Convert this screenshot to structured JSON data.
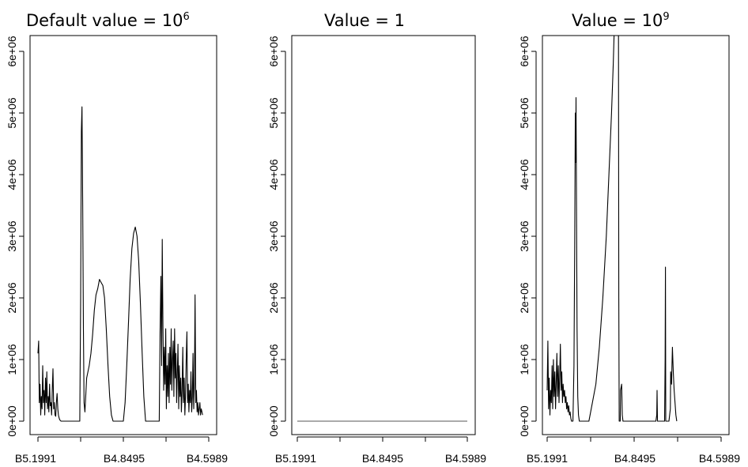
{
  "chart_data": [
    {
      "type": "line",
      "title": "Default value = 10",
      "title_superscript": "6",
      "xlabel": "",
      "ylabel": "",
      "ylim": [
        0,
        6300000
      ],
      "y_ticks": [
        {
          "value": 0,
          "label": "0e+00"
        },
        {
          "value": 1000000,
          "label": "1e+06"
        },
        {
          "value": 2000000,
          "label": "2e+06"
        },
        {
          "value": 3000000,
          "label": "3e+06"
        },
        {
          "value": 4000000,
          "label": "4e+06"
        },
        {
          "value": 5000000,
          "label": "5e+06"
        },
        {
          "value": 6000000,
          "label": "6e+06"
        }
      ],
      "xlim": [
        0,
        1
      ],
      "x_ticks": [
        {
          "value": 0,
          "label": "B5.1991"
        },
        {
          "value": 0.25,
          "label": ""
        },
        {
          "value": 0.5,
          "label": "B4.8495"
        },
        {
          "value": 0.75,
          "label": ""
        },
        {
          "value": 1,
          "label": "B4.5989"
        }
      ],
      "series_points": [
        [
          0.0,
          1100000
        ],
        [
          0.004,
          1300000
        ],
        [
          0.008,
          300000
        ],
        [
          0.012,
          600000
        ],
        [
          0.016,
          100000
        ],
        [
          0.02,
          400000
        ],
        [
          0.024,
          200000
        ],
        [
          0.028,
          900000
        ],
        [
          0.032,
          300000
        ],
        [
          0.036,
          500000
        ],
        [
          0.04,
          100000
        ],
        [
          0.044,
          700000
        ],
        [
          0.048,
          300000
        ],
        [
          0.052,
          800000
        ],
        [
          0.056,
          200000
        ],
        [
          0.06,
          400000
        ],
        [
          0.064,
          150000
        ],
        [
          0.068,
          600000
        ],
        [
          0.072,
          250000
        ],
        [
          0.076,
          300000
        ],
        [
          0.08,
          100000
        ],
        [
          0.084,
          500000
        ],
        [
          0.088,
          850000
        ],
        [
          0.092,
          200000
        ],
        [
          0.096,
          300000
        ],
        [
          0.1,
          100000
        ],
        [
          0.104,
          80000
        ],
        [
          0.108,
          300000
        ],
        [
          0.112,
          450000
        ],
        [
          0.116,
          200000
        ],
        [
          0.12,
          100000
        ],
        [
          0.124,
          50000
        ],
        [
          0.128,
          20000
        ],
        [
          0.135,
          0
        ],
        [
          0.245,
          0
        ],
        [
          0.25,
          2000000
        ],
        [
          0.254,
          4700000
        ],
        [
          0.258,
          5100000
        ],
        [
          0.262,
          3500000
        ],
        [
          0.266,
          1500000
        ],
        [
          0.27,
          300000
        ],
        [
          0.275,
          150000
        ],
        [
          0.285,
          700000
        ],
        [
          0.3,
          900000
        ],
        [
          0.31,
          1100000
        ],
        [
          0.32,
          1400000
        ],
        [
          0.33,
          1800000
        ],
        [
          0.34,
          2050000
        ],
        [
          0.35,
          2150000
        ],
        [
          0.36,
          2300000
        ],
        [
          0.37,
          2250000
        ],
        [
          0.38,
          2200000
        ],
        [
          0.39,
          2000000
        ],
        [
          0.4,
          1500000
        ],
        [
          0.41,
          900000
        ],
        [
          0.42,
          400000
        ],
        [
          0.43,
          100000
        ],
        [
          0.44,
          0
        ],
        [
          0.5,
          0
        ],
        [
          0.51,
          300000
        ],
        [
          0.52,
          900000
        ],
        [
          0.53,
          1600000
        ],
        [
          0.54,
          2300000
        ],
        [
          0.55,
          2800000
        ],
        [
          0.56,
          3050000
        ],
        [
          0.57,
          3150000
        ],
        [
          0.58,
          3000000
        ],
        [
          0.59,
          2600000
        ],
        [
          0.6,
          1900000
        ],
        [
          0.61,
          1100000
        ],
        [
          0.62,
          400000
        ],
        [
          0.63,
          0
        ],
        [
          0.71,
          0
        ],
        [
          0.715,
          1400000
        ],
        [
          0.72,
          2350000
        ],
        [
          0.724,
          900000
        ],
        [
          0.728,
          2950000
        ],
        [
          0.732,
          1500000
        ],
        [
          0.736,
          500000
        ],
        [
          0.74,
          1200000
        ],
        [
          0.744,
          600000
        ],
        [
          0.748,
          1500000
        ],
        [
          0.752,
          200000
        ],
        [
          0.756,
          900000
        ],
        [
          0.76,
          400000
        ],
        [
          0.764,
          1100000
        ],
        [
          0.768,
          300000
        ],
        [
          0.772,
          1200000
        ],
        [
          0.776,
          600000
        ],
        [
          0.78,
          1500000
        ],
        [
          0.784,
          500000
        ],
        [
          0.788,
          1000000
        ],
        [
          0.792,
          1300000
        ],
        [
          0.796,
          400000
        ],
        [
          0.8,
          1500000
        ],
        [
          0.804,
          700000
        ],
        [
          0.808,
          1100000
        ],
        [
          0.812,
          300000
        ],
        [
          0.816,
          800000
        ],
        [
          0.82,
          1250000
        ],
        [
          0.824,
          200000
        ],
        [
          0.828,
          900000
        ],
        [
          0.832,
          400000
        ],
        [
          0.836,
          700000
        ],
        [
          0.84,
          150000
        ],
        [
          0.844,
          500000
        ],
        [
          0.848,
          1200000
        ],
        [
          0.852,
          300000
        ],
        [
          0.856,
          700000
        ],
        [
          0.86,
          100000
        ],
        [
          0.864,
          400000
        ],
        [
          0.868,
          1000000
        ],
        [
          0.872,
          1450000
        ],
        [
          0.876,
          300000
        ],
        [
          0.88,
          600000
        ],
        [
          0.884,
          150000
        ],
        [
          0.888,
          500000
        ],
        [
          0.892,
          300000
        ],
        [
          0.896,
          800000
        ],
        [
          0.9,
          150000
        ],
        [
          0.904,
          400000
        ],
        [
          0.908,
          1100000
        ],
        [
          0.912,
          200000
        ],
        [
          0.916,
          600000
        ],
        [
          0.92,
          2050000
        ],
        [
          0.924,
          300000
        ],
        [
          0.928,
          500000
        ],
        [
          0.932,
          150000
        ],
        [
          0.936,
          300000
        ],
        [
          0.94,
          100000
        ],
        [
          0.944,
          200000
        ],
        [
          0.948,
          300000
        ],
        [
          0.952,
          100000
        ],
        [
          0.956,
          200000
        ],
        [
          0.96,
          150000
        ],
        [
          0.964,
          100000
        ]
      ]
    },
    {
      "type": "line",
      "title": "Value = 1",
      "title_superscript": "",
      "xlabel": "",
      "ylabel": "",
      "ylim": [
        0,
        6300000
      ],
      "y_ticks": [
        {
          "value": 0,
          "label": "0e+00"
        },
        {
          "value": 1000000,
          "label": "1e+06"
        },
        {
          "value": 2000000,
          "label": "2e+06"
        },
        {
          "value": 3000000,
          "label": "3e+06"
        },
        {
          "value": 4000000,
          "label": "4e+06"
        },
        {
          "value": 5000000,
          "label": "5e+06"
        },
        {
          "value": 6000000,
          "label": "6e+06"
        }
      ],
      "xlim": [
        0,
        1
      ],
      "x_ticks": [
        {
          "value": 0,
          "label": "B5.1991"
        },
        {
          "value": 0.25,
          "label": ""
        },
        {
          "value": 0.5,
          "label": "B4.8495"
        },
        {
          "value": 0.75,
          "label": ""
        },
        {
          "value": 1,
          "label": "B4.5989"
        }
      ],
      "series_points": [
        [
          0.0,
          0
        ],
        [
          1.0,
          0
        ]
      ]
    },
    {
      "type": "line",
      "title": "Value = 10",
      "title_superscript": "9",
      "xlabel": "",
      "ylabel": "",
      "ylim": [
        0,
        6300000
      ],
      "y_ticks": [
        {
          "value": 0,
          "label": "0e+00"
        },
        {
          "value": 1000000,
          "label": "1e+06"
        },
        {
          "value": 2000000,
          "label": "2e+06"
        },
        {
          "value": 3000000,
          "label": "3e+06"
        },
        {
          "value": 4000000,
          "label": "4e+06"
        },
        {
          "value": 5000000,
          "label": "5e+06"
        },
        {
          "value": 6000000,
          "label": "6e+06"
        }
      ],
      "xlim": [
        0,
        1
      ],
      "x_ticks": [
        {
          "value": 0,
          "label": "B5.1991"
        },
        {
          "value": 0.25,
          "label": ""
        },
        {
          "value": 0.5,
          "label": "B4.8495"
        },
        {
          "value": 0.75,
          "label": ""
        },
        {
          "value": 1,
          "label": "B4.5989"
        }
      ],
      "series_points": [
        [
          0.0,
          500000
        ],
        [
          0.004,
          1300000
        ],
        [
          0.008,
          200000
        ],
        [
          0.012,
          700000
        ],
        [
          0.016,
          100000
        ],
        [
          0.02,
          500000
        ],
        [
          0.024,
          300000
        ],
        [
          0.028,
          900000
        ],
        [
          0.032,
          200000
        ],
        [
          0.036,
          1000000
        ],
        [
          0.04,
          400000
        ],
        [
          0.044,
          800000
        ],
        [
          0.048,
          200000
        ],
        [
          0.052,
          600000
        ],
        [
          0.056,
          1100000
        ],
        [
          0.06,
          400000
        ],
        [
          0.064,
          900000
        ],
        [
          0.068,
          300000
        ],
        [
          0.072,
          700000
        ],
        [
          0.076,
          1250000
        ],
        [
          0.08,
          500000
        ],
        [
          0.084,
          800000
        ],
        [
          0.088,
          300000
        ],
        [
          0.092,
          600000
        ],
        [
          0.096,
          400000
        ],
        [
          0.1,
          500000
        ],
        [
          0.104,
          300000
        ],
        [
          0.108,
          400000
        ],
        [
          0.112,
          200000
        ],
        [
          0.116,
          300000
        ],
        [
          0.12,
          150000
        ],
        [
          0.124,
          250000
        ],
        [
          0.128,
          100000
        ],
        [
          0.132,
          150000
        ],
        [
          0.136,
          50000
        ],
        [
          0.14,
          0
        ],
        [
          0.148,
          0
        ],
        [
          0.154,
          900000
        ],
        [
          0.158,
          2800000
        ],
        [
          0.162,
          5000000
        ],
        [
          0.164,
          4200000
        ],
        [
          0.166,
          5250000
        ],
        [
          0.168,
          3800000
        ],
        [
          0.172,
          1500000
        ],
        [
          0.176,
          400000
        ],
        [
          0.18,
          100000
        ],
        [
          0.185,
          0
        ],
        [
          0.24,
          0
        ],
        [
          0.26,
          300000
        ],
        [
          0.28,
          600000
        ],
        [
          0.3,
          1200000
        ],
        [
          0.32,
          2000000
        ],
        [
          0.34,
          3000000
        ],
        [
          0.355,
          4000000
        ],
        [
          0.37,
          5000000
        ],
        [
          0.38,
          5800000
        ],
        [
          0.385,
          6300000
        ],
        [
          0.41,
          6300000
        ],
        [
          0.412,
          2000000
        ],
        [
          0.414,
          0
        ],
        [
          0.42,
          0
        ],
        [
          0.422,
          500000
        ],
        [
          0.428,
          600000
        ],
        [
          0.432,
          100000
        ],
        [
          0.436,
          0
        ],
        [
          0.6,
          0
        ],
        [
          0.61,
          0
        ],
        [
          0.62,
          0
        ],
        [
          0.625,
          0
        ],
        [
          0.63,
          100000
        ],
        [
          0.632,
          500000
        ],
        [
          0.634,
          0
        ],
        [
          0.64,
          0
        ],
        [
          0.645,
          0
        ],
        [
          0.65,
          0
        ],
        [
          0.66,
          0
        ],
        [
          0.675,
          0
        ],
        [
          0.678,
          1000000
        ],
        [
          0.68,
          2500000
        ],
        [
          0.682,
          0
        ],
        [
          0.69,
          0
        ],
        [
          0.7,
          0
        ],
        [
          0.708,
          200000
        ],
        [
          0.71,
          800000
        ],
        [
          0.715,
          600000
        ],
        [
          0.72,
          1200000
        ],
        [
          0.725,
          800000
        ],
        [
          0.73,
          500000
        ],
        [
          0.735,
          300000
        ],
        [
          0.74,
          100000
        ],
        [
          0.745,
          0
        ]
      ]
    }
  ]
}
